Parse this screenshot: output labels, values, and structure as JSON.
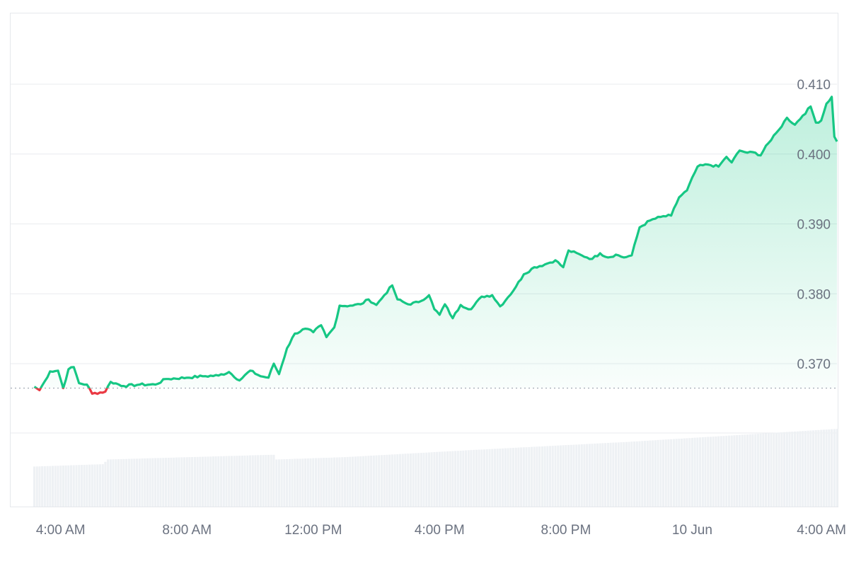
{
  "chart_data": {
    "type": "area",
    "title": "",
    "xlabel": "",
    "ylabel": "",
    "ylim": [
      0.36,
      0.41
    ],
    "grid": true,
    "legend": "none",
    "baseline": 0.3665,
    "x_start": "2024-06-09T03:10",
    "x_step_minutes": 5,
    "x_ticks": [
      {
        "label": "4:00 AM",
        "t": "2024-06-09T04:00"
      },
      {
        "label": "8:00 AM",
        "t": "2024-06-09T08:00"
      },
      {
        "label": "12:00 PM",
        "t": "2024-06-09T12:00"
      },
      {
        "label": "4:00 PM",
        "t": "2024-06-09T16:00"
      },
      {
        "label": "8:00 PM",
        "t": "2024-06-09T20:00"
      },
      {
        "label": "10 Jun",
        "t": "2024-06-10T00:00"
      },
      {
        "label": "4:00 AM",
        "t": "2024-06-10T04:00"
      }
    ],
    "y_ticks": [
      0.37,
      0.38,
      0.39,
      0.4,
      0.41
    ],
    "colors": {
      "up": "#16c784",
      "down": "#ea3943",
      "volume": "#eef1f4",
      "grid": "#e9ebef",
      "baseline": "#9ca3af"
    },
    "anchors": [
      [
        "2024-06-09T03:10",
        0.3667
      ],
      [
        "2024-06-09T03:20",
        0.3662
      ],
      [
        "2024-06-09T03:30",
        0.3675
      ],
      [
        "2024-06-09T03:40",
        0.3689
      ],
      [
        "2024-06-09T03:55",
        0.369
      ],
      [
        "2024-06-09T04:05",
        0.3665
      ],
      [
        "2024-06-09T04:15",
        0.3692
      ],
      [
        "2024-06-09T04:25",
        0.3695
      ],
      [
        "2024-06-09T04:35",
        0.3672
      ],
      [
        "2024-06-09T04:50",
        0.367
      ],
      [
        "2024-06-09T05:00",
        0.3657
      ],
      [
        "2024-06-09T05:25",
        0.366
      ],
      [
        "2024-06-09T05:35",
        0.3674
      ],
      [
        "2024-06-09T06:00",
        0.3668
      ],
      [
        "2024-06-09T06:30",
        0.367
      ],
      [
        "2024-06-09T07:00",
        0.367
      ],
      [
        "2024-06-09T07:20",
        0.3678
      ],
      [
        "2024-06-09T08:00",
        0.368
      ],
      [
        "2024-06-09T08:30",
        0.3682
      ],
      [
        "2024-06-09T09:00",
        0.3683
      ],
      [
        "2024-06-09T09:20",
        0.3688
      ],
      [
        "2024-06-09T09:40",
        0.3676
      ],
      [
        "2024-06-09T10:00",
        0.369
      ],
      [
        "2024-06-09T10:20",
        0.3682
      ],
      [
        "2024-06-09T10:35",
        0.368
      ],
      [
        "2024-06-09T10:45",
        0.37
      ],
      [
        "2024-06-09T10:55",
        0.3685
      ],
      [
        "2024-06-09T11:10",
        0.3722
      ],
      [
        "2024-06-09T11:25",
        0.3743
      ],
      [
        "2024-06-09T11:45",
        0.375
      ],
      [
        "2024-06-09T12:00",
        0.3745
      ],
      [
        "2024-06-09T12:15",
        0.3755
      ],
      [
        "2024-06-09T12:25",
        0.3738
      ],
      [
        "2024-06-09T12:40",
        0.3752
      ],
      [
        "2024-06-09T12:50",
        0.3783
      ],
      [
        "2024-06-09T13:10",
        0.3783
      ],
      [
        "2024-06-09T13:30",
        0.3785
      ],
      [
        "2024-06-09T13:45",
        0.3792
      ],
      [
        "2024-06-09T14:00",
        0.3784
      ],
      [
        "2024-06-09T14:15",
        0.3798
      ],
      [
        "2024-06-09T14:30",
        0.3812
      ],
      [
        "2024-06-09T14:40",
        0.3792
      ],
      [
        "2024-06-09T15:00",
        0.3785
      ],
      [
        "2024-06-09T15:20",
        0.3788
      ],
      [
        "2024-06-09T15:40",
        0.3798
      ],
      [
        "2024-06-09T15:50",
        0.3778
      ],
      [
        "2024-06-09T16:00",
        0.377
      ],
      [
        "2024-06-09T16:10",
        0.3785
      ],
      [
        "2024-06-09T16:25",
        0.3765
      ],
      [
        "2024-06-09T16:40",
        0.3784
      ],
      [
        "2024-06-09T17:00",
        0.3778
      ],
      [
        "2024-06-09T17:20",
        0.3796
      ],
      [
        "2024-06-09T17:40",
        0.3798
      ],
      [
        "2024-06-09T17:55",
        0.3782
      ],
      [
        "2024-06-09T18:10",
        0.3795
      ],
      [
        "2024-06-09T18:25",
        0.381
      ],
      [
        "2024-06-09T18:40",
        0.3828
      ],
      [
        "2024-06-09T19:00",
        0.3838
      ],
      [
        "2024-06-09T19:20",
        0.3842
      ],
      [
        "2024-06-09T19:40",
        0.3848
      ],
      [
        "2024-06-09T19:55",
        0.3838
      ],
      [
        "2024-06-09T20:05",
        0.3862
      ],
      [
        "2024-06-09T20:30",
        0.3855
      ],
      [
        "2024-06-09T20:50",
        0.385
      ],
      [
        "2024-06-09T21:05",
        0.3858
      ],
      [
        "2024-06-09T21:20",
        0.3852
      ],
      [
        "2024-06-09T21:35",
        0.3856
      ],
      [
        "2024-06-09T21:50",
        0.3852
      ],
      [
        "2024-06-09T22:05",
        0.3855
      ],
      [
        "2024-06-09T22:20",
        0.3895
      ],
      [
        "2024-06-09T22:40",
        0.3905
      ],
      [
        "2024-06-09T23:00",
        0.391
      ],
      [
        "2024-06-09T23:20",
        0.3912
      ],
      [
        "2024-06-09T23:35",
        0.3938
      ],
      [
        "2024-06-09T23:50",
        0.3948
      ],
      [
        "2024-06-10T00:10",
        0.3982
      ],
      [
        "2024-06-10T00:30",
        0.3985
      ],
      [
        "2024-06-10T00:50",
        0.3982
      ],
      [
        "2024-06-10T01:05",
        0.3996
      ],
      [
        "2024-06-10T01:15",
        0.3988
      ],
      [
        "2024-06-10T01:30",
        0.4005
      ],
      [
        "2024-06-10T01:45",
        0.4002
      ],
      [
        "2024-06-10T02:00",
        0.4002
      ],
      [
        "2024-06-10T02:10",
        0.3998
      ],
      [
        "2024-06-10T02:20",
        0.4012
      ],
      [
        "2024-06-10T02:30",
        0.402
      ],
      [
        "2024-06-10T02:45",
        0.4035
      ],
      [
        "2024-06-10T03:00",
        0.4052
      ],
      [
        "2024-06-10T03:15",
        0.4042
      ],
      [
        "2024-06-10T03:30",
        0.4055
      ],
      [
        "2024-06-10T03:45",
        0.4068
      ],
      [
        "2024-06-10T03:55",
        0.4045
      ],
      [
        "2024-06-10T04:05",
        0.4048
      ],
      [
        "2024-06-10T04:15",
        0.4072
      ],
      [
        "2024-06-10T04:25",
        0.4082
      ],
      [
        "2024-06-10T04:30",
        0.4025
      ],
      [
        "2024-06-10T04:35",
        0.4018
      ]
    ],
    "volume_anchors": [
      [
        "2024-06-09T03:10",
        0.34
      ],
      [
        "2024-06-09T05:20",
        0.36
      ],
      [
        "2024-06-09T05:30",
        0.4
      ],
      [
        "2024-06-09T10:40",
        0.44
      ],
      [
        "2024-06-09T10:50",
        0.4
      ],
      [
        "2024-06-09T13:00",
        0.42
      ],
      [
        "2024-06-09T17:00",
        0.48
      ],
      [
        "2024-06-09T22:00",
        0.55
      ],
      [
        "2024-06-10T01:00",
        0.6
      ],
      [
        "2024-06-10T04:35",
        0.66
      ]
    ]
  }
}
